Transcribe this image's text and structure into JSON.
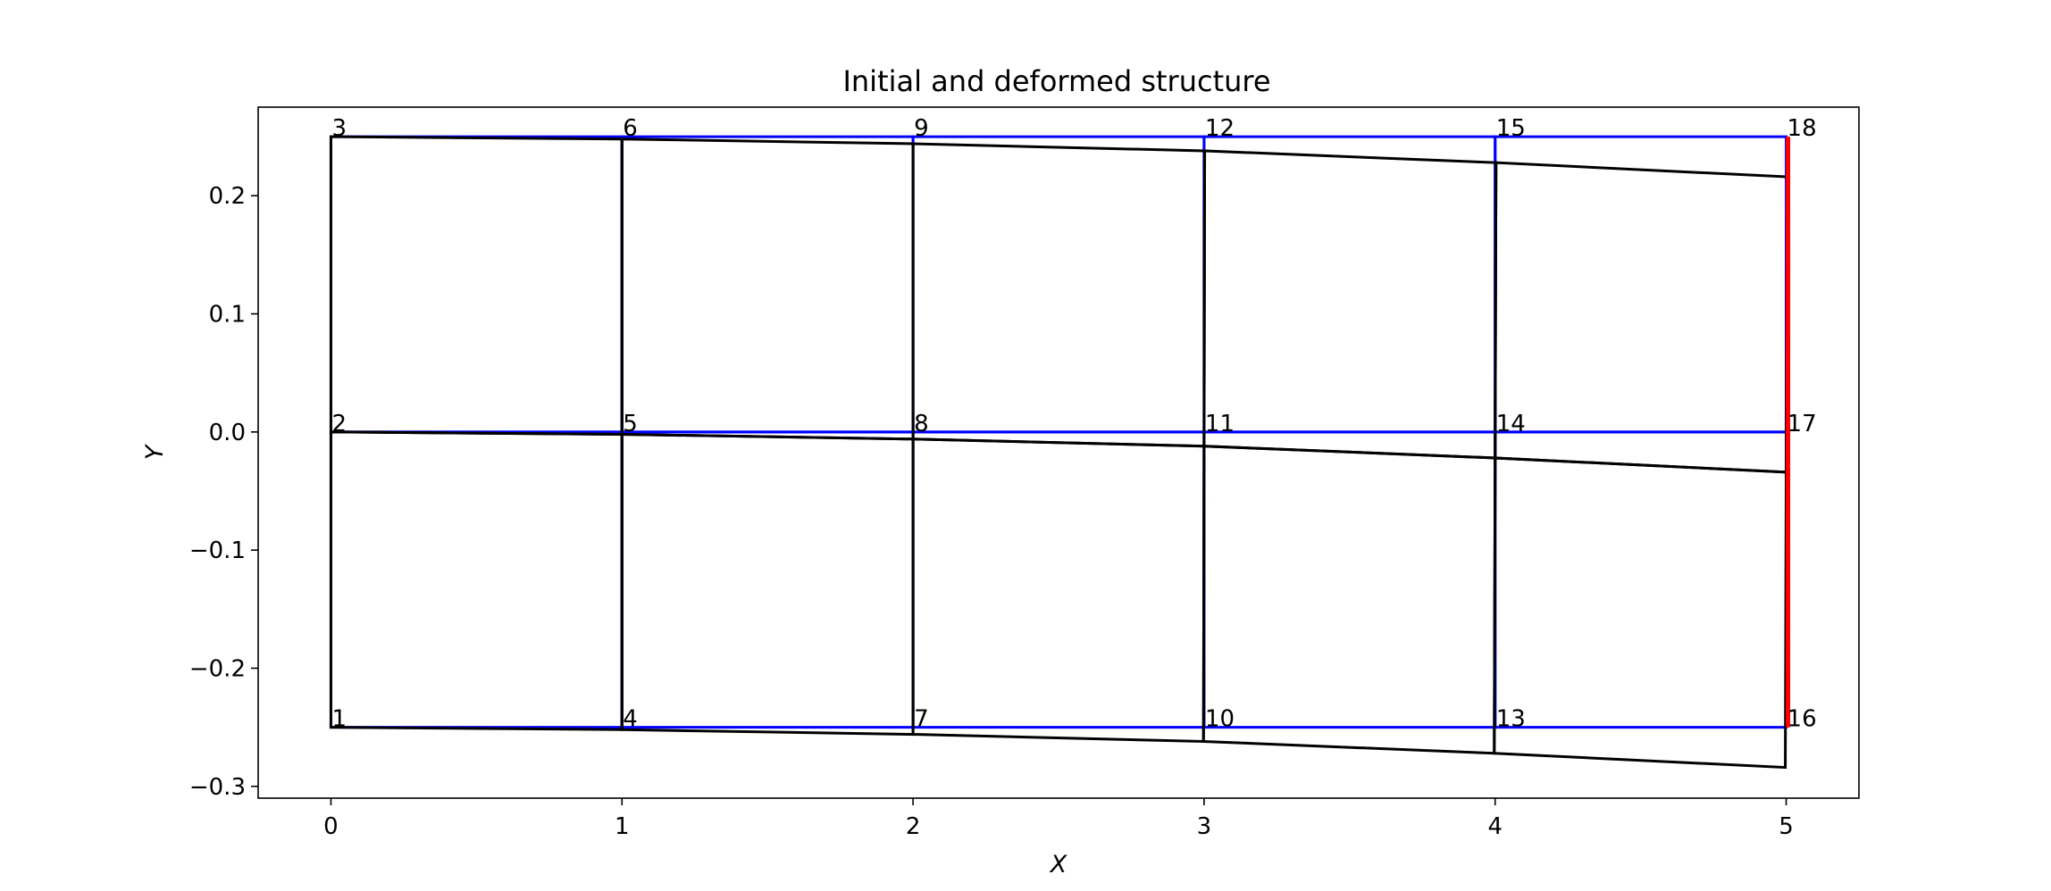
{
  "chart_data": {
    "type": "line",
    "title": "Initial and deformed structure",
    "xlabel": "X",
    "ylabel": "Y",
    "xlim": [
      -0.25,
      5.25
    ],
    "ylim": [
      -0.31,
      0.275
    ],
    "xticks": [
      0,
      1,
      2,
      3,
      4,
      5
    ],
    "xtick_labels": [
      "0",
      "1",
      "2",
      "3",
      "4",
      "5"
    ],
    "yticks": [
      -0.3,
      -0.2,
      -0.1,
      0.0,
      0.1,
      0.2
    ],
    "ytick_labels": [
      "−0.3",
      "−0.2",
      "−0.1",
      "0.0",
      "0.1",
      "0.2"
    ],
    "grid": false,
    "colors": {
      "initial": "#0000ff",
      "deformed": "#000000",
      "loaded_edge": "#ff0000"
    },
    "nodes": [
      {
        "id": 1,
        "label": "1",
        "x": 0,
        "y": -0.25,
        "dx": 0,
        "dy": 0
      },
      {
        "id": 2,
        "label": "2",
        "x": 0,
        "y": 0.0,
        "dx": 0,
        "dy": 0
      },
      {
        "id": 3,
        "label": "3",
        "x": 0,
        "y": 0.25,
        "dx": 0,
        "dy": 0
      },
      {
        "id": 4,
        "label": "4",
        "x": 1,
        "y": -0.25,
        "dx": 0.0,
        "dy": -0.002
      },
      {
        "id": 5,
        "label": "5",
        "x": 1,
        "y": 0.0,
        "dx": 0.0,
        "dy": -0.002
      },
      {
        "id": 6,
        "label": "6",
        "x": 1,
        "y": 0.25,
        "dx": 0.0,
        "dy": -0.002
      },
      {
        "id": 7,
        "label": "7",
        "x": 2,
        "y": -0.25,
        "dx": 0.0,
        "dy": -0.006
      },
      {
        "id": 8,
        "label": "8",
        "x": 2,
        "y": 0.0,
        "dx": 0.0,
        "dy": -0.006
      },
      {
        "id": 9,
        "label": "9",
        "x": 2,
        "y": 0.25,
        "dx": 0.0,
        "dy": -0.006
      },
      {
        "id": 10,
        "label": "10",
        "x": 3,
        "y": -0.25,
        "dx": -0.002,
        "dy": -0.012
      },
      {
        "id": 11,
        "label": "11",
        "x": 3,
        "y": 0.0,
        "dx": 0.0,
        "dy": -0.012
      },
      {
        "id": 12,
        "label": "12",
        "x": 3,
        "y": 0.25,
        "dx": 0.002,
        "dy": -0.012
      },
      {
        "id": 13,
        "label": "13",
        "x": 4,
        "y": -0.25,
        "dx": -0.003,
        "dy": -0.022
      },
      {
        "id": 14,
        "label": "14",
        "x": 4,
        "y": 0.0,
        "dx": 0.0,
        "dy": -0.022
      },
      {
        "id": 15,
        "label": "15",
        "x": 4,
        "y": 0.25,
        "dx": 0.003,
        "dy": -0.022
      },
      {
        "id": 16,
        "label": "16",
        "x": 5,
        "y": -0.25,
        "dx": -0.003,
        "dy": -0.034
      },
      {
        "id": 17,
        "label": "17",
        "x": 5,
        "y": 0.0,
        "dx": 0.0,
        "dy": -0.034
      },
      {
        "id": 18,
        "label": "18",
        "x": 5,
        "y": 0.25,
        "dx": 0.003,
        "dy": -0.034
      }
    ],
    "elements": [
      [
        1,
        4,
        5,
        2
      ],
      [
        2,
        5,
        6,
        3
      ],
      [
        4,
        7,
        8,
        5
      ],
      [
        5,
        8,
        9,
        6
      ],
      [
        7,
        10,
        11,
        8
      ],
      [
        8,
        11,
        12,
        9
      ],
      [
        10,
        13,
        14,
        11
      ],
      [
        11,
        14,
        15,
        12
      ],
      [
        13,
        16,
        17,
        14
      ],
      [
        14,
        17,
        18,
        15
      ]
    ],
    "loaded_edge": [
      16,
      18
    ]
  }
}
